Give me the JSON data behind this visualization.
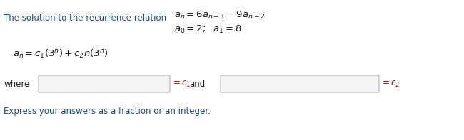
{
  "bg_color": "#ffffff",
  "text_color_blue": "#1F4E79",
  "text_color_red": "#C00000",
  "text_color_dark": "#1a1a1a",
  "line1_left": "The solution to the recurrence relation",
  "line1_math": "$a_n=6a_{n-1}-9a_{n-2}$",
  "line2_math": "$a_0=2;\\ \\ a_1=8$",
  "line3_math": "$a_n=c_1(3^n)+c_2n(3^n)$",
  "where_label": "where",
  "eq_c1": "$=c_1$",
  "and_label": "and",
  "eq_c2": "$=c_2$",
  "bottom_text": "Express your answers as a fraction or an integer."
}
